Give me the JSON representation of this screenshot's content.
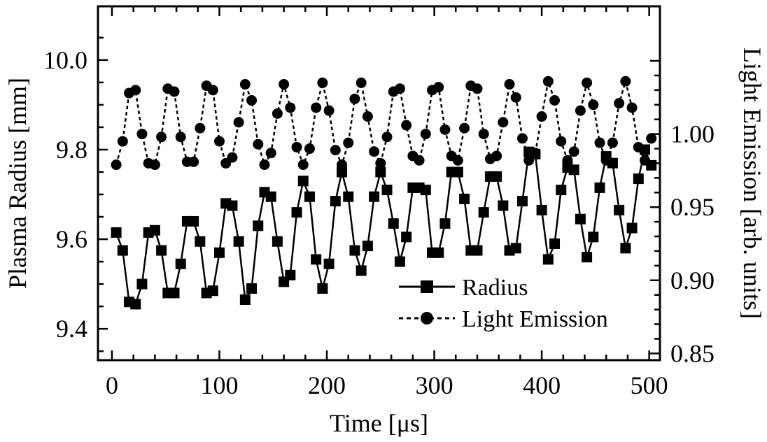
{
  "chart_data": {
    "type": "line",
    "title": "",
    "xlabel": "Time [μs]",
    "ylabel_left": "Plasma Radius [mm]",
    "ylabel_right": "Light Emission [arb. units]",
    "xlim": [
      -13,
      510
    ],
    "ylim_left": [
      9.33,
      10.12
    ],
    "ylim_right": [
      0.8454,
      1.0873
    ],
    "x_ticks": [
      0,
      100,
      200,
      300,
      400,
      500
    ],
    "y_left_ticks": [
      "9.4",
      "9.6",
      "9.8",
      "10.0"
    ],
    "y_right_ticks": [
      "0.85",
      "0.90",
      "0.95",
      "1.00"
    ],
    "legend_position": "bottom-right",
    "grid": false,
    "series": [
      {
        "name": "Radius",
        "axis": "left",
        "marker": "square",
        "line": "solid",
        "x": [
          4,
          10,
          16,
          22,
          28,
          34,
          40,
          46,
          52,
          58,
          64,
          70,
          76,
          82,
          88,
          94,
          100,
          106,
          112,
          118,
          124,
          130,
          136,
          142,
          148,
          154,
          160,
          166,
          172,
          178,
          184,
          190,
          196,
          202,
          208,
          214,
          220,
          226,
          232,
          238,
          244,
          250,
          256,
          262,
          268,
          274,
          280,
          286,
          292,
          298,
          304,
          310,
          316,
          322,
          328,
          334,
          340,
          346,
          352,
          358,
          364,
          370,
          376,
          382,
          388,
          394,
          400,
          406,
          412,
          418,
          424,
          430,
          436,
          442,
          448,
          454,
          460,
          466,
          472,
          478,
          484,
          490,
          496,
          502
        ],
        "values": [
          9.615,
          9.575,
          9.46,
          9.455,
          9.5,
          9.615,
          9.62,
          9.575,
          9.48,
          9.48,
          9.545,
          9.64,
          9.64,
          9.595,
          9.48,
          9.485,
          9.57,
          9.68,
          9.675,
          9.595,
          9.465,
          9.49,
          9.63,
          9.705,
          9.695,
          9.595,
          9.505,
          9.52,
          9.66,
          9.73,
          9.695,
          9.555,
          9.49,
          9.545,
          9.685,
          9.75,
          9.695,
          9.575,
          9.53,
          9.585,
          9.695,
          9.75,
          9.71,
          9.635,
          9.55,
          9.605,
          9.715,
          9.715,
          9.71,
          9.57,
          9.57,
          9.635,
          9.75,
          9.75,
          9.69,
          9.575,
          9.575,
          9.66,
          9.74,
          9.74,
          9.675,
          9.575,
          9.58,
          9.685,
          9.795,
          9.79,
          9.665,
          9.555,
          9.59,
          9.71,
          9.76,
          9.755,
          9.645,
          9.56,
          9.605,
          9.715,
          9.785,
          9.77,
          9.665,
          9.58,
          9.625,
          9.735,
          9.8,
          9.765
        ]
      },
      {
        "name": "Light Emission",
        "axis": "right",
        "marker": "circle",
        "line": "dashed",
        "x": [
          4,
          10,
          16,
          22,
          28,
          34,
          40,
          46,
          52,
          58,
          64,
          70,
          76,
          82,
          88,
          94,
          100,
          106,
          112,
          118,
          124,
          130,
          136,
          142,
          148,
          154,
          160,
          166,
          172,
          178,
          184,
          190,
          196,
          202,
          208,
          214,
          220,
          226,
          232,
          238,
          244,
          250,
          256,
          262,
          268,
          274,
          280,
          286,
          292,
          298,
          304,
          310,
          316,
          322,
          328,
          334,
          340,
          346,
          352,
          358,
          364,
          370,
          376,
          382,
          388,
          394,
          400,
          406,
          412,
          418,
          424,
          430,
          436,
          442,
          448,
          454,
          460,
          466,
          472,
          478,
          484,
          490,
          496,
          502
        ],
        "values": [
          0.979,
          0.995,
          1.028,
          1.03,
          1.0,
          0.98,
          0.979,
          0.998,
          1.031,
          1.029,
          0.998,
          0.981,
          0.981,
          1.004,
          1.033,
          1.03,
          0.995,
          0.98,
          0.984,
          1.008,
          1.034,
          1.023,
          0.993,
          0.979,
          0.987,
          1.014,
          1.034,
          1.018,
          0.991,
          0.979,
          0.99,
          1.018,
          1.035,
          1.016,
          0.989,
          0.979,
          0.994,
          1.024,
          1.035,
          1.012,
          0.988,
          0.98,
          0.998,
          1.029,
          1.031,
          1.006,
          0.985,
          0.982,
          1.0,
          1.03,
          1.032,
          1.003,
          0.985,
          0.982,
          1.004,
          1.033,
          1.031,
          1.0,
          0.983,
          0.985,
          1.008,
          1.034,
          1.025,
          0.997,
          0.982,
          0.987,
          1.012,
          1.036,
          1.023,
          0.995,
          0.982,
          0.988,
          1.016,
          1.035,
          1.02,
          0.994,
          0.982,
          0.994,
          1.021,
          1.036,
          1.018,
          0.991,
          0.982,
          0.997
        ]
      }
    ]
  }
}
